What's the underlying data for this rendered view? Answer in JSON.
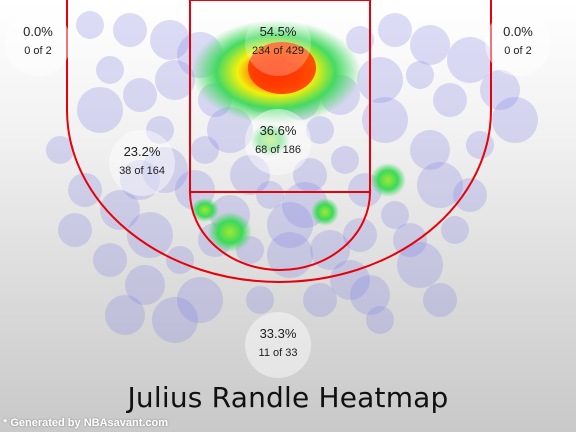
{
  "chart_data": {
    "type": "heatmap",
    "title": "Julius Randle Heatmap",
    "colors": {
      "court_lines": "#e8000a",
      "shot_blob": "#8585e6",
      "heat_low": "#3cd95a",
      "heat_mid": "#f4f000",
      "heat_high": "#ff2a00"
    },
    "zones": [
      {
        "id": "left-corner-three",
        "pct": "0.0%",
        "count": "0 of 2",
        "made": 0,
        "attempts": 2
      },
      {
        "id": "right-corner-three",
        "pct": "0.0%",
        "count": "0 of 2",
        "made": 0,
        "attempts": 2
      },
      {
        "id": "restricted-area",
        "pct": "54.5%",
        "count": "234 of 429",
        "made": 234,
        "attempts": 429
      },
      {
        "id": "paint",
        "pct": "36.6%",
        "count": "68 of 186",
        "made": 68,
        "attempts": 186
      },
      {
        "id": "left-midrange",
        "pct": "23.2%",
        "count": "38 of 164",
        "made": 38,
        "attempts": 164
      },
      {
        "id": "top-of-key-three",
        "pct": "33.3%",
        "count": "11 of 33",
        "made": 11,
        "attempts": 33
      }
    ]
  },
  "footer": {
    "credit": "* Generated by NBAsavant.com"
  }
}
